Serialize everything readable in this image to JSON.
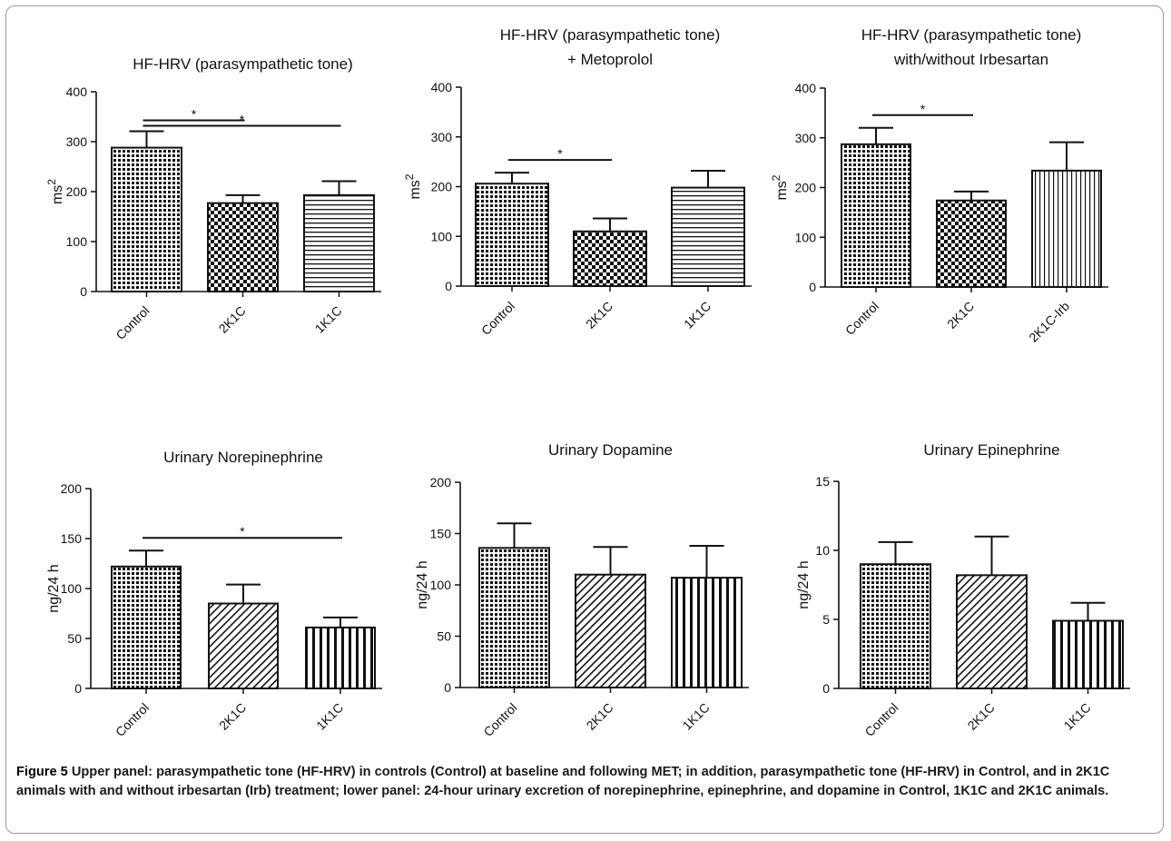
{
  "figure": {
    "caption_label": "Figure 5",
    "caption_text": "Upper panel: parasympathetic tone (HF-HRV) in controls (Control) at baseline and following MET; in addition, parasympathetic tone (HF-HRV) in Control, and in 2K1C animals with and without irbesartan (Irb) treatment; lower panel: 24-hour urinary excretion of norepinephrine, epinephrine, and dopamine in Control, 1K1C and 2K1C animals."
  },
  "chart_data": [
    {
      "type": "bar",
      "title_lines": [
        "HF-HRV (parasympathetic tone)"
      ],
      "ylabel": "ms2",
      "ylim": [
        0,
        400
      ],
      "yticks": [
        0,
        100,
        200,
        300,
        400
      ],
      "categories": [
        "Control",
        "2K1C",
        "1K1C"
      ],
      "values": [
        288,
        177,
        193
      ],
      "errors": [
        33,
        16,
        28
      ],
      "patterns": [
        "grid",
        "checker",
        "hlines"
      ],
      "significance": [
        {
          "from": "Control",
          "to": "2K1C",
          "label": "*"
        },
        {
          "from": "Control",
          "to": "1K1C",
          "label": "*"
        }
      ]
    },
    {
      "type": "bar",
      "title_lines": [
        "HF-HRV (parasympathetic tone)",
        "+ Metoprolol"
      ],
      "ylabel": "ms2",
      "ylim": [
        0,
        400
      ],
      "yticks": [
        0,
        100,
        200,
        300,
        400
      ],
      "categories": [
        "Control",
        "2K1C",
        "1K1C"
      ],
      "values": [
        206,
        110,
        198
      ],
      "errors": [
        22,
        26,
        34
      ],
      "patterns": [
        "grid",
        "checker",
        "hlines"
      ],
      "significance": [
        {
          "from": "Control",
          "to": "2K1C",
          "label": "*"
        }
      ]
    },
    {
      "type": "bar",
      "title_lines": [
        "HF-HRV (parasympathetic tone)",
        "with/without  Irbesartan"
      ],
      "ylabel": "ms2",
      "ylim": [
        0,
        400
      ],
      "yticks": [
        0,
        100,
        200,
        300,
        400
      ],
      "categories": [
        "Control",
        "2K1C",
        "2K1C-Irb"
      ],
      "values": [
        287,
        174,
        234
      ],
      "errors": [
        33,
        18,
        57
      ],
      "patterns": [
        "grid",
        "checker",
        "vlines-thin"
      ],
      "significance": [
        {
          "from": "Control",
          "to": "2K1C",
          "label": "*"
        }
      ]
    },
    {
      "type": "bar",
      "title_lines": [
        "Urinary Norepinephrine"
      ],
      "ylabel": "ng/24 h",
      "ylim": [
        0,
        200
      ],
      "yticks": [
        0,
        50,
        100,
        150,
        200
      ],
      "categories": [
        "Control",
        "2K1C",
        "1K1C"
      ],
      "values": [
        122,
        85,
        61
      ],
      "errors": [
        16,
        19,
        10
      ],
      "patterns": [
        "grid",
        "diag",
        "vlines"
      ],
      "significance": [
        {
          "from": "Control",
          "to": "1K1C",
          "label": "*"
        }
      ]
    },
    {
      "type": "bar",
      "title_lines": [
        "Urinary Dopamine"
      ],
      "ylabel": "ng/24 h",
      "ylim": [
        0,
        200
      ],
      "yticks": [
        0,
        50,
        100,
        150,
        200
      ],
      "categories": [
        "Control",
        "2K1C",
        "1K1C"
      ],
      "values": [
        136,
        110,
        107
      ],
      "errors": [
        24,
        27,
        31
      ],
      "patterns": [
        "grid",
        "diag",
        "vlines"
      ],
      "significance": []
    },
    {
      "type": "bar",
      "title_lines": [
        "Urinary Epinephrine"
      ],
      "ylabel": "ng/24 h",
      "ylim": [
        0,
        15
      ],
      "yticks": [
        0,
        5,
        10,
        15
      ],
      "categories": [
        "Control",
        "2K1C",
        "1K1C"
      ],
      "values": [
        9.0,
        8.2,
        4.9
      ],
      "errors": [
        1.6,
        2.8,
        1.3
      ],
      "patterns": [
        "grid",
        "diag",
        "vlines"
      ],
      "significance": []
    }
  ]
}
